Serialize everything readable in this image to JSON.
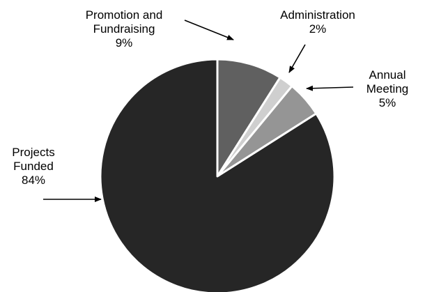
{
  "chart_data": {
    "type": "pie",
    "start_angle_deg": 0,
    "direction": "clockwise",
    "slices": [
      {
        "name": "Promotion and Fundraising",
        "label_lines": [
          "Promotion and",
          "Fundraising"
        ],
        "percent_label": "9%",
        "value": 9,
        "color": "#606060"
      },
      {
        "name": "Administration",
        "label_lines": [
          "Administration"
        ],
        "percent_label": "2%",
        "value": 2,
        "color": "#cfcfcf"
      },
      {
        "name": "Annual Meeting",
        "label_lines": [
          "Annual",
          "Meeting"
        ],
        "percent_label": "5%",
        "value": 5,
        "color": "#959595"
      },
      {
        "name": "Projects Funded",
        "label_lines": [
          "Projects",
          "Funded"
        ],
        "percent_label": "84%",
        "value": 84,
        "color": "#262626"
      }
    ],
    "slice_border_color": "#ffffff",
    "legend": "none",
    "title": ""
  }
}
